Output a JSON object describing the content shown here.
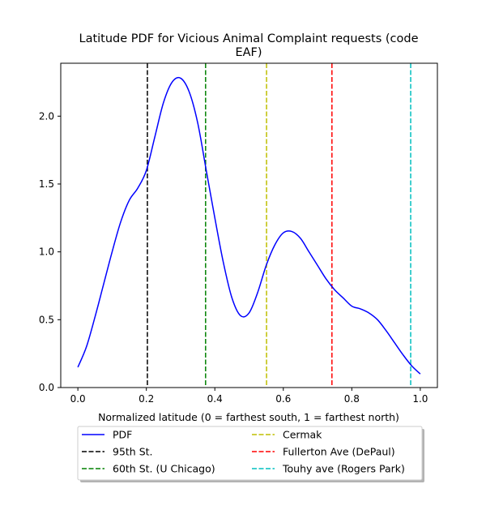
{
  "chart_data": {
    "type": "line",
    "title_lines": [
      "Latitude PDF for Vicious Animal Complaint  requests (code",
      "EAF)"
    ],
    "xlabel": "Normalized latitude (0 = farthest south, 1 = farthest north)",
    "ylabel": "",
    "xlim": [
      -0.05,
      1.05
    ],
    "ylim": [
      0.0,
      2.39
    ],
    "xticks": [
      0.0,
      0.2,
      0.4,
      0.6,
      0.8,
      1.0
    ],
    "xtick_labels": [
      "0.0",
      "0.2",
      "0.4",
      "0.6",
      "0.8",
      "1.0"
    ],
    "yticks": [
      0.0,
      0.5,
      1.0,
      1.5,
      2.0
    ],
    "ytick_labels": [
      "0.0",
      "0.5",
      "1.0",
      "1.5",
      "2.0"
    ],
    "grid": false,
    "legend_placement": "below plot, two columns",
    "series": [
      {
        "name": "PDF",
        "color": "#0000ff",
        "style": "solid",
        "x": [
          0.0,
          0.025,
          0.05,
          0.075,
          0.1,
          0.125,
          0.15,
          0.175,
          0.2,
          0.225,
          0.25,
          0.275,
          0.3,
          0.325,
          0.35,
          0.375,
          0.4,
          0.425,
          0.45,
          0.475,
          0.5,
          0.525,
          0.55,
          0.575,
          0.6,
          0.625,
          0.65,
          0.675,
          0.7,
          0.725,
          0.75,
          0.775,
          0.8,
          0.825,
          0.85,
          0.875,
          0.9,
          0.925,
          0.95,
          0.975,
          1.0
        ],
        "values": [
          0.15,
          0.3,
          0.52,
          0.76,
          1.0,
          1.22,
          1.38,
          1.47,
          1.6,
          1.85,
          2.1,
          2.25,
          2.28,
          2.18,
          1.95,
          1.6,
          1.25,
          0.92,
          0.66,
          0.53,
          0.55,
          0.7,
          0.9,
          1.05,
          1.14,
          1.15,
          1.1,
          1.0,
          0.9,
          0.8,
          0.72,
          0.66,
          0.6,
          0.58,
          0.55,
          0.5,
          0.42,
          0.33,
          0.24,
          0.16,
          0.1
        ]
      }
    ],
    "vlines": [
      {
        "name": "95th St.",
        "x": 0.203,
        "color": "#000000"
      },
      {
        "name": "60th St. (U Chicago)",
        "x": 0.373,
        "color": "#008000"
      },
      {
        "name": "Cermak",
        "x": 0.551,
        "color": "#bfbf00"
      },
      {
        "name": "Fullerton Ave (DePaul)",
        "x": 0.742,
        "color": "#ff0000"
      },
      {
        "name": "Touhy ave (Rogers Park)",
        "x": 0.972,
        "color": "#00bfbf"
      }
    ],
    "legend": [
      {
        "label": "PDF",
        "color": "#0000ff",
        "style": "solid"
      },
      {
        "label": "Cermak",
        "color": "#bfbf00",
        "style": "dashed"
      },
      {
        "label": "95th St.",
        "color": "#000000",
        "style": "dashed"
      },
      {
        "label": "Fullerton Ave (DePaul)",
        "color": "#ff0000",
        "style": "dashed"
      },
      {
        "label": "60th St. (U Chicago)",
        "color": "#008000",
        "style": "dashed"
      },
      {
        "label": "Touhy ave (Rogers Park)",
        "color": "#00bfbf",
        "style": "dashed"
      }
    ]
  }
}
